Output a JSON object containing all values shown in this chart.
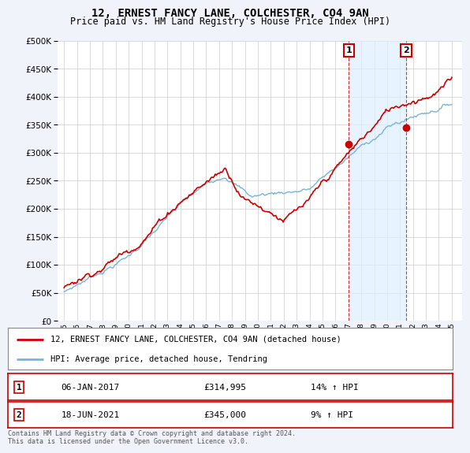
{
  "title": "12, ERNEST FANCY LANE, COLCHESTER, CO4 9AN",
  "subtitle": "Price paid vs. HM Land Registry's House Price Index (HPI)",
  "ylim": [
    0,
    500000
  ],
  "yticks": [
    0,
    50000,
    100000,
    150000,
    200000,
    250000,
    300000,
    350000,
    400000,
    450000,
    500000
  ],
  "hpi_color": "#7ab4d8",
  "price_color": "#cc0000",
  "sale1_x": 2017.04,
  "sale1_y": 314995,
  "sale2_x": 2021.46,
  "sale2_y": 345000,
  "legend_property": "12, ERNEST FANCY LANE, COLCHESTER, CO4 9AN (detached house)",
  "legend_hpi": "HPI: Average price, detached house, Tendring",
  "footer": "Contains HM Land Registry data © Crown copyright and database right 2024.\nThis data is licensed under the Open Government Licence v3.0.",
  "bg_color": "#f0f4fa",
  "plot_bg_color": "#ffffff",
  "grid_color": "#cccccc",
  "shade_color": "#ddeeff",
  "xmin": 1994.5,
  "xmax": 2025.8
}
